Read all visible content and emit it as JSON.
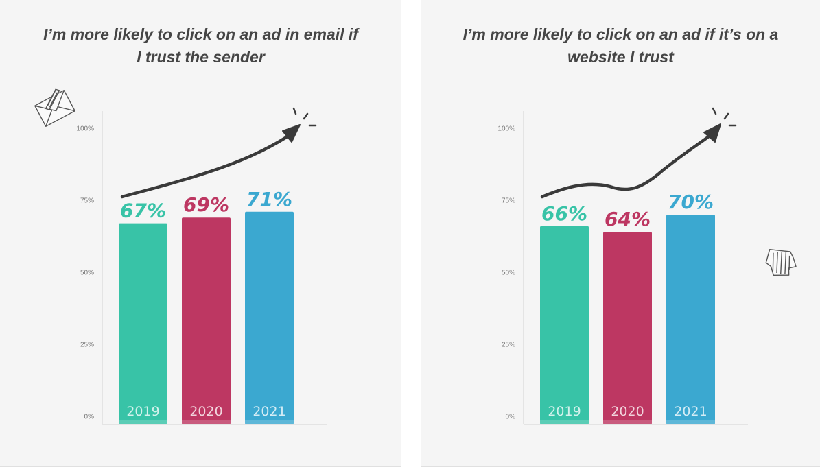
{
  "colors": {
    "panel_bg": "#f5f5f5",
    "axis": "#d2d2d2",
    "arrow": "#3a3a3a",
    "teal": "#38c3a7",
    "crimson": "#bd3762",
    "blue": "#3ba8d0"
  },
  "icons": [
    "envelope-doodle-icon",
    "hand-pointer-doodle-icon",
    "trend-arrow-doodle-icon"
  ],
  "chart_data": [
    {
      "type": "bar",
      "title": "I’m more likely to click on an ad in email if I trust the sender",
      "title_lines": [
        "I’m more likely to click on an ad in email if",
        "I trust the sender"
      ],
      "categories": [
        "2019",
        "2020",
        "2021"
      ],
      "values": [
        67,
        69,
        71
      ],
      "value_labels": [
        "67%",
        "69%",
        "71%"
      ],
      "bar_colors": [
        "#38c3a7",
        "#bd3762",
        "#3ba8d0"
      ],
      "ylim": [
        0,
        100
      ],
      "yticks": [
        0,
        25,
        50,
        75,
        100
      ],
      "ytick_labels": [
        "0%",
        "25%",
        "50%",
        "75%",
        "100%"
      ],
      "xlabel": "",
      "ylabel": "",
      "grid": false,
      "legend": "none"
    },
    {
      "type": "bar",
      "title": "I’m more likely to click on an ad if it’s on a website I trust",
      "title_lines": [
        "I’m more likely to click on an ad if it’s on a",
        "website I trust"
      ],
      "categories": [
        "2019",
        "2020",
        "2021"
      ],
      "values": [
        66,
        64,
        70
      ],
      "value_labels": [
        "66%",
        "64%",
        "70%"
      ],
      "bar_colors": [
        "#38c3a7",
        "#bd3762",
        "#3ba8d0"
      ],
      "ylim": [
        0,
        100
      ],
      "yticks": [
        0,
        25,
        50,
        75,
        100
      ],
      "ytick_labels": [
        "0%",
        "25%",
        "50%",
        "75%",
        "100%"
      ],
      "xlabel": "",
      "ylabel": "",
      "grid": false,
      "legend": "none"
    }
  ]
}
